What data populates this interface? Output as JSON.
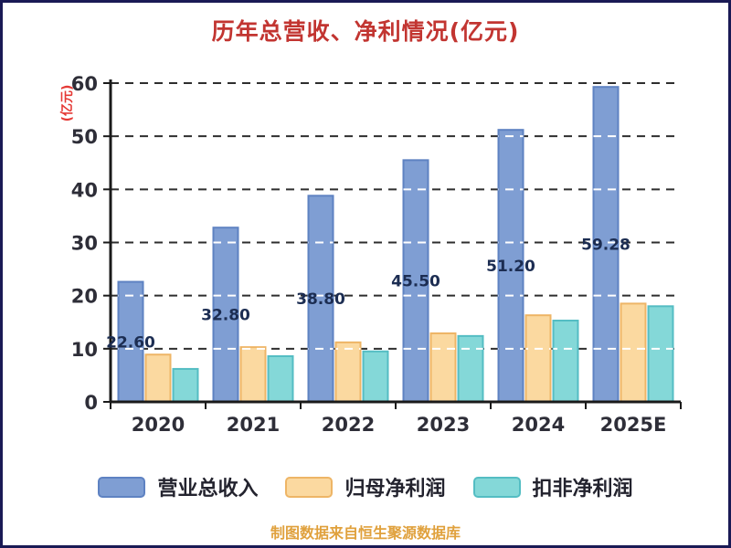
{
  "chart_data": {
    "type": "bar",
    "title": "历年总营收、净利情况(亿元)",
    "ylabel": "(亿元)",
    "xlabel": "",
    "source_note": "制图数据来自恒生聚源数据库",
    "categories": [
      "2020",
      "2021",
      "2022",
      "2023",
      "2024",
      "2025E"
    ],
    "series": [
      {
        "name": "营业总收入",
        "color": "#7f9ed3",
        "border_color": "#5e82c2",
        "values": [
          22.6,
          32.8,
          38.8,
          45.5,
          51.2,
          59.28
        ],
        "labels": [
          "22.60",
          "32.80",
          "38.80",
          "45.50",
          "51.20",
          "59.28"
        ]
      },
      {
        "name": "归母净利润",
        "color": "#fbd9a0",
        "border_color": "#eeb566",
        "values": [
          8.9,
          10.3,
          11.2,
          12.9,
          16.3,
          18.5
        ]
      },
      {
        "name": "扣非净利润",
        "color": "#84d8d8",
        "border_color": "#54bdc3",
        "values": [
          6.2,
          8.6,
          9.5,
          12.4,
          15.3,
          18.0
        ]
      }
    ],
    "ylim": [
      0,
      60
    ],
    "yticks": [
      0,
      10,
      20,
      30,
      40,
      50,
      60
    ],
    "grid": "horizontal-dashed",
    "legend_position": "bottom",
    "colors": {
      "title": "#c23531",
      "unit_label": "#e53935",
      "note": "#e0a13d",
      "frame_border": "#1a1a55",
      "axis": "#1a1a1a",
      "tick_label": "#2e2e38",
      "bar_value_label": "#1c2d52",
      "gridline": "#2e2e2e",
      "legend_label": "#23232e"
    }
  }
}
